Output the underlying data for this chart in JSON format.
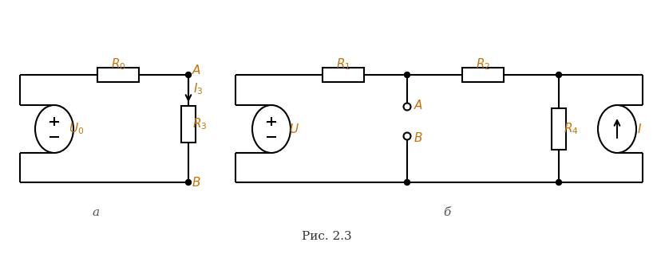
{
  "fig_width": 8.18,
  "fig_height": 3.19,
  "dpi": 100,
  "line_color": "#000000",
  "label_color": "#c8720a",
  "node_color": "#000000",
  "line_width": 1.5,
  "background_color": "#ffffff",
  "title": "Рис. 2.3",
  "circuit_a_label": "а",
  "circuit_b_label": "б"
}
